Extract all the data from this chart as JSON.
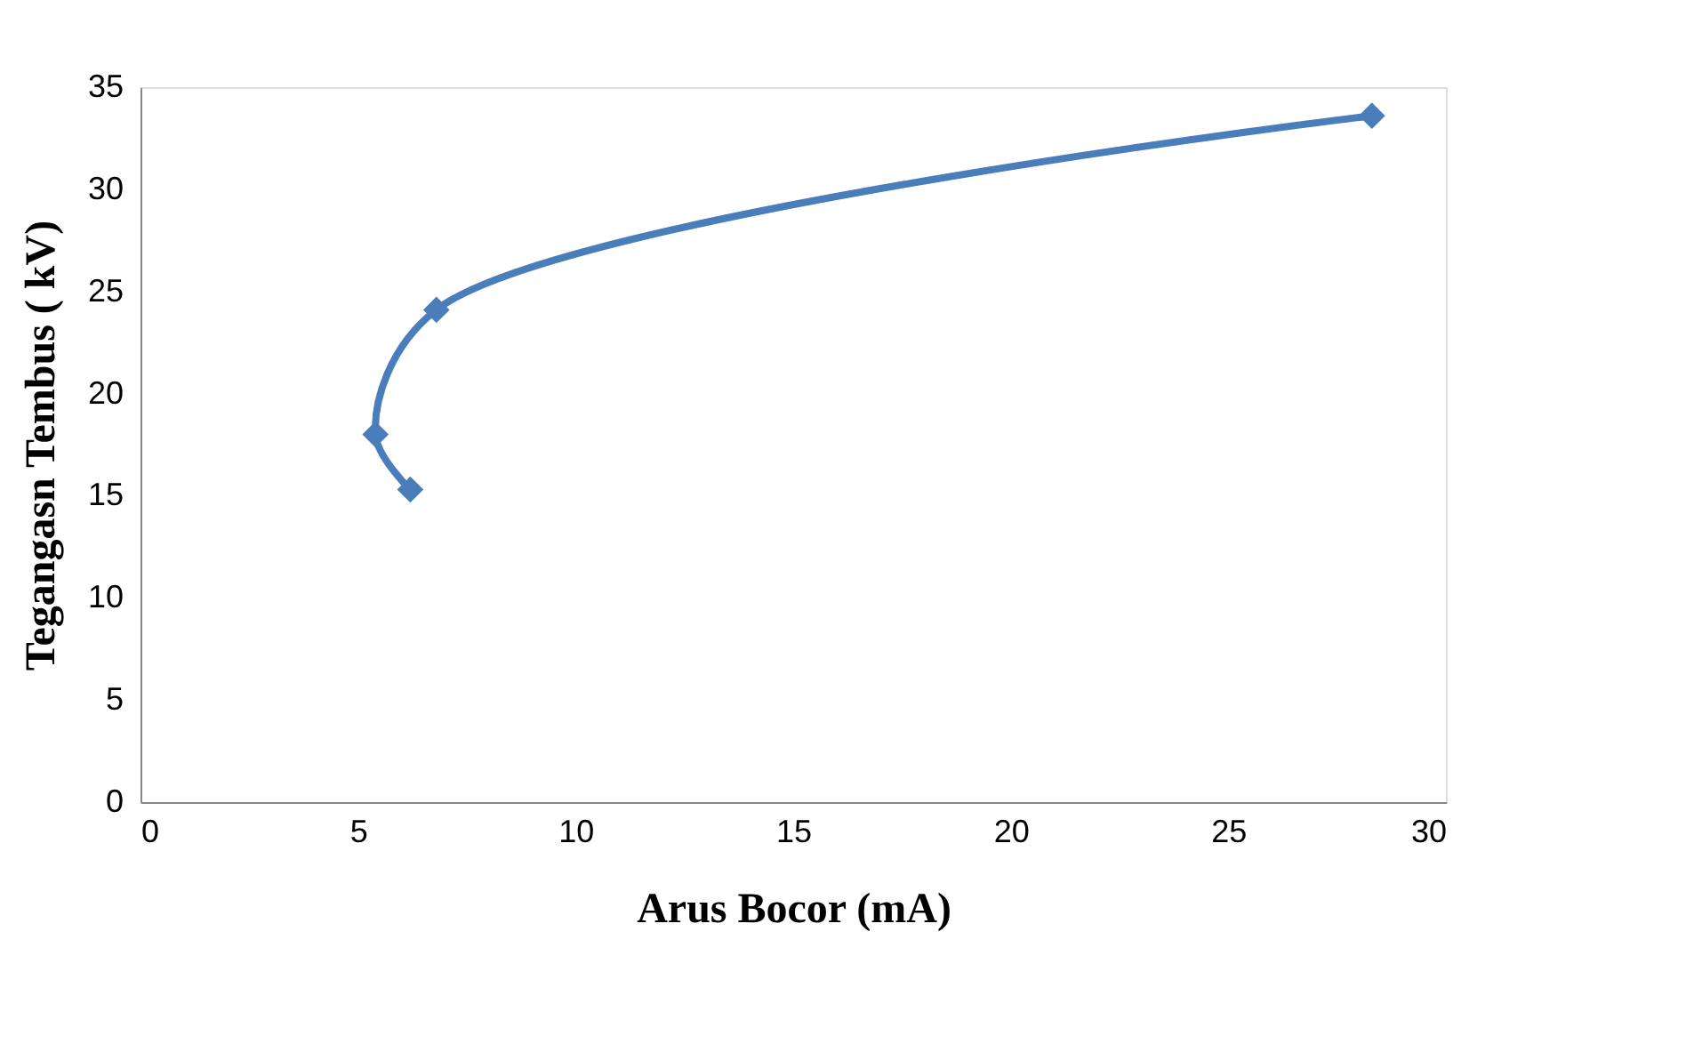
{
  "chart_data": {
    "type": "line",
    "xlabel": "Arus Bocor (mA)",
    "ylabel": "Tegangasn Tembus ( kV)",
    "x": [
      6.2,
      5.4,
      6.8,
      28.3
    ],
    "series": [
      {
        "color": "#4a7ebb",
        "values": [
          15.3,
          18.0,
          24.1,
          33.6
        ]
      }
    ],
    "xlim": [
      0,
      30
    ],
    "xticks": [
      0,
      5,
      10,
      15,
      20,
      25,
      30
    ],
    "ylim": [
      0,
      35
    ],
    "yticks": [
      0,
      5,
      10,
      15,
      20,
      25,
      30,
      35
    ],
    "grid": false,
    "legend": false,
    "marker": "diamond",
    "line_style": "solid"
  }
}
